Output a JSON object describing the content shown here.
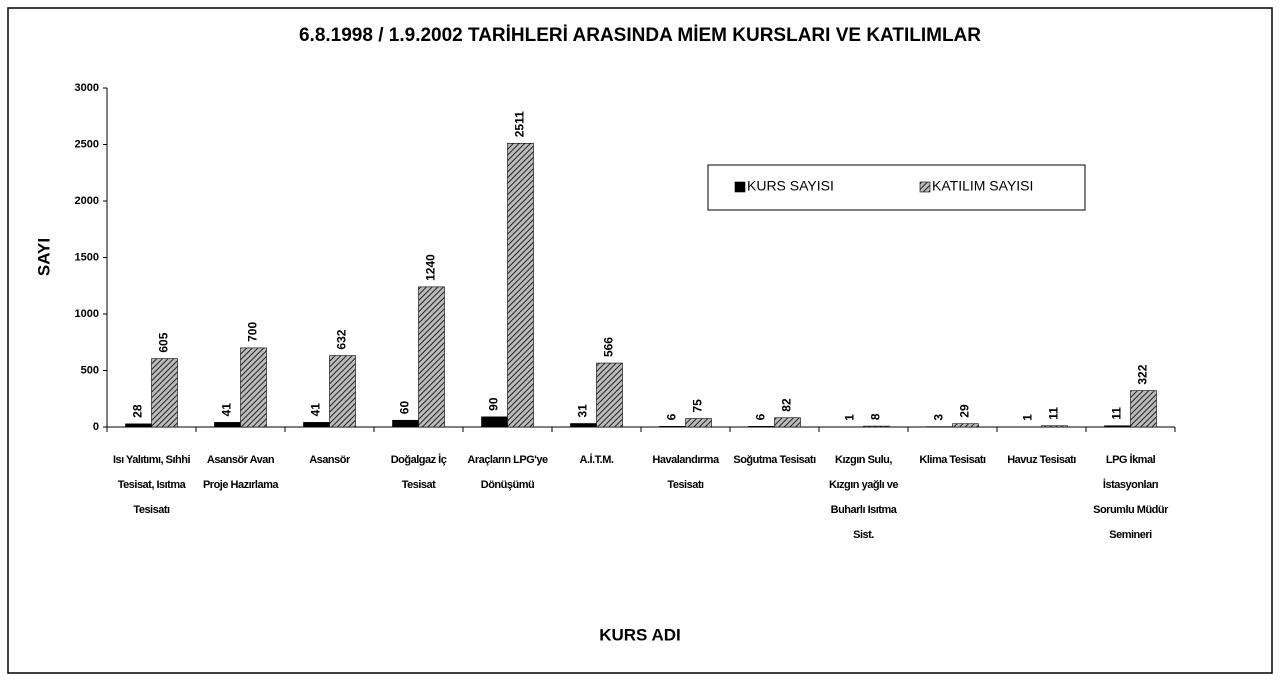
{
  "chart_data": {
    "type": "bar",
    "title": "6.8.1998 / 1.9.2002 TARİHLERİ ARASINDA MİEM KURSLARI VE KATILIMLAR",
    "y_label": "SAYI",
    "x_label": "KURS ADI",
    "categories": [
      "Isı Yalıtımı, Sıhhi Tesisat, Isıtma Tesisatı",
      "Asansör Avan Proje Hazırlama",
      "Asansör",
      "Doğalgaz İç Tesisat",
      "Araçların LPG'ye Dönüşümü",
      "A.İ.T.M.",
      "Havalandırma Tesisatı",
      "Soğutma Tesisatı",
      "Kızgın Sulu, Kızgın yağlı ve Buharlı Isıtma Sist.",
      "Klima Tesisatı",
      "Havuz Tesisatı",
      "LPG İkmal İstasyonları Sorumlu Müdür Semineri"
    ],
    "series": [
      {
        "name": "KURS SAYISI",
        "color": "#000000",
        "values": [
          28,
          41,
          41,
          60,
          90,
          31,
          6,
          6,
          1,
          3,
          1,
          11
        ]
      },
      {
        "name": "KATILIM SAYISI",
        "color": "#333333",
        "pattern": "hatch",
        "values": [
          605,
          700,
          632,
          1240,
          2511,
          566,
          75,
          82,
          8,
          29,
          11,
          322
        ]
      }
    ],
    "ylim": [
      0,
      3000
    ],
    "yticks": [
      0,
      500,
      1000,
      1500,
      2000,
      2500,
      3000
    ],
    "legend": "upper right"
  }
}
